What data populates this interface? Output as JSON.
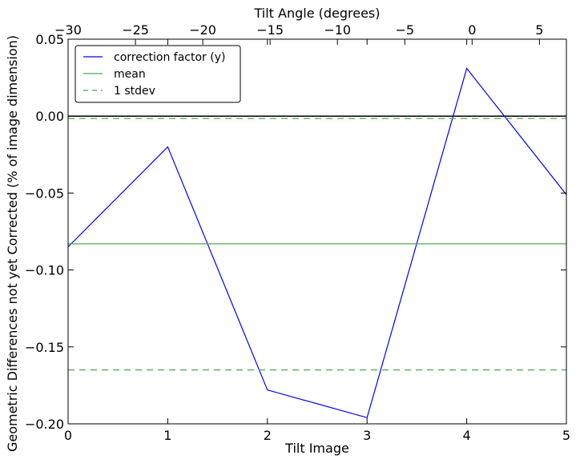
{
  "chart_data": {
    "type": "line",
    "xlabel": "Tilt Image",
    "ylabel": "Geometric Differences not yet Corrected (% of image dimension)",
    "x2label": "Tilt Angle (degrees)",
    "xlim": [
      0,
      5
    ],
    "ylim": [
      -0.2,
      0.05
    ],
    "x2lim": [
      -30,
      7
    ],
    "xticks": [
      0,
      1,
      2,
      3,
      4,
      5
    ],
    "xtick_labels": [
      "0",
      "1",
      "2",
      "3",
      "4",
      "5"
    ],
    "yticks": [
      0.05,
      0.0,
      -0.05,
      -0.1,
      -0.15,
      -0.2
    ],
    "ytick_labels": [
      "0.05",
      "0.00",
      "−0.05",
      "−0.10",
      "−0.15",
      "−0.20"
    ],
    "x2ticks": [
      -30,
      -25,
      -20,
      -15,
      -10,
      -5,
      0,
      5
    ],
    "x2tick_labels": [
      "−30",
      "−25",
      "−20",
      "−15",
      "−10",
      "−5",
      "0",
      "5"
    ],
    "grid": false,
    "legend_position": "top-left",
    "series": [
      {
        "name": "correction factor (y)",
        "color": "#0000ff",
        "style": "solid",
        "x": [
          0,
          1,
          2,
          3,
          4,
          5
        ],
        "y": [
          -0.085,
          -0.02,
          -0.178,
          -0.196,
          0.031,
          -0.051
        ]
      },
      {
        "name": "mean",
        "color": "#4aa84a",
        "style": "solid",
        "x": [
          0,
          5
        ],
        "y": [
          -0.083,
          -0.083
        ]
      },
      {
        "name": "1 stdev",
        "color": "#4aa84a",
        "style": "dashed",
        "x": [
          0,
          5
        ],
        "y": [
          -0.0015,
          -0.0015
        ],
        "lower_y": [
          -0.165,
          -0.165
        ]
      }
    ],
    "zero_line": {
      "y": 0.0,
      "color": "#000000"
    }
  }
}
